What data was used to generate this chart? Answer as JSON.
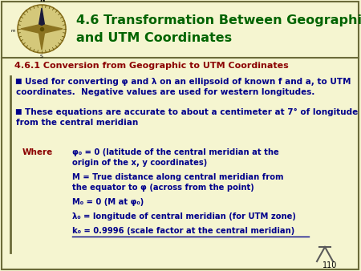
{
  "bg_color": "#f5f5d0",
  "title_line1": "4.6 Transformation Between Geographic",
  "title_line2": "and UTM Coordinates",
  "title_color": "#006400",
  "subtitle": "4.6.1 Conversion from Geographic to UTM Coordinates",
  "subtitle_color": "#8B0000",
  "bullet1_line1": "Used for converting φ and λ on an ellipsoid of known f and a, to UTM",
  "bullet1_line2": "coordinates.  Negative values are used for western longitudes.",
  "bullet2_line1": "These equations are accurate to about a centimeter at 7° of longitude",
  "bullet2_line2": "from the central meridian",
  "bullet_color": "#00008B",
  "where_color": "#8B0000",
  "where_text": "Where",
  "def1_line1": "φ₀ = 0 (latitude of the central meridian at the",
  "def1_line2": "origin of the x, y coordinates)",
  "def2_line1": "M = True distance along central meridian from",
  "def2_line2": "the equator to φ (across from the point)",
  "def3": "M₀ = 0 (M at φ₀)",
  "def4": "λ₀ = longitude of central meridian (for UTM zone)",
  "def5": "k₀ = 0.9996 (scale factor at the central meridian)",
  "def_color": "#00008B",
  "page_num": "110",
  "border_color": "#6b6b3a",
  "left_bar_color": "#6b6b3a"
}
